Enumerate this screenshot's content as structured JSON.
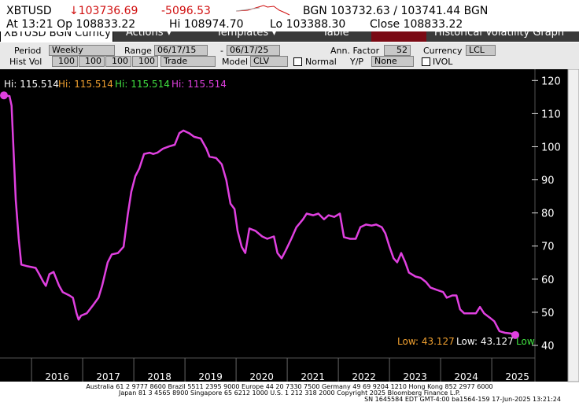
{
  "header": {
    "ticker": "XBTUSD",
    "last": "↓103736.69",
    "change": "-5096.53",
    "quote": "BGN 103732.63 / 103741.44 BGN",
    "open": "At 13:21 Op 108833.22",
    "hi": "Hi 108974.70",
    "lo": "Lo 103388.30",
    "close": "Close 108833.22"
  },
  "menu": [
    "XBTUSD BGN Curncy",
    "Actions ▾",
    "Templates ▾",
    "Table",
    "Historical Volatility Graph"
  ],
  "controls": {
    "period_label": "Period",
    "period": "Weekly",
    "range_label": "Range",
    "range_start": "06/17/15",
    "range_dash": "-",
    "range_end": "06/17/25",
    "ann_label": "Ann. Factor",
    "ann": "52",
    "currency_label": "Currency",
    "currency": "LCL",
    "hist_label": "Hist Vol",
    "hist": [
      "100",
      "100",
      "100",
      "100"
    ],
    "price": "Trade",
    "model_label": "Model",
    "model": "CLV",
    "normal": "Normal",
    "yp_label": "Y/P",
    "yp": "None",
    "ivol": "IVOL"
  },
  "chart_data": {
    "type": "line",
    "color": "#e040e0",
    "x": [
      2015.46,
      2015.57,
      2015.61,
      2015.69,
      2015.75,
      2015.8,
      2015.92,
      2016.08,
      2016.15,
      2016.23,
      2016.28,
      2016.35,
      2016.43,
      2016.54,
      2016.61,
      2016.74,
      2016.81,
      2016.88,
      2016.92,
      2016.97,
      2017.08,
      2017.2,
      2017.31,
      2017.38,
      2017.49,
      2017.57,
      2017.69,
      2017.8,
      2017.88,
      2017.95,
      2018.03,
      2018.11,
      2018.2,
      2018.31,
      2018.38,
      2018.46,
      2018.57,
      2018.69,
      2018.8,
      2018.89,
      2018.97,
      2019.08,
      2019.18,
      2019.31,
      2019.42,
      2019.48,
      2019.61,
      2019.72,
      2019.81,
      2019.89,
      2019.97,
      2020.03,
      2020.11,
      2020.18,
      2020.26,
      2020.38,
      2020.51,
      2020.61,
      2020.74,
      2020.81,
      2020.89,
      2020.97,
      2021.08,
      2021.18,
      2021.31,
      2021.38,
      2021.51,
      2021.61,
      2021.72,
      2021.81,
      2021.92,
      2022.03,
      2022.11,
      2022.23,
      2022.34,
      2022.43,
      2022.54,
      2022.65,
      2022.74,
      2022.85,
      2022.92,
      2023.0,
      2023.08,
      2023.15,
      2023.23,
      2023.31,
      2023.38,
      2023.51,
      2023.61,
      2023.71,
      2023.8,
      2023.92,
      2024.05,
      2024.12,
      2024.23,
      2024.31,
      2024.38,
      2024.46,
      2024.58,
      2024.69,
      2024.77,
      2024.85,
      2024.95,
      2025.05,
      2025.15,
      2025.26,
      2025.38,
      2025.46
    ],
    "values": [
      115.514,
      115.3,
      112.4,
      84.0,
      72.2,
      64.4,
      63.9,
      63.4,
      61.5,
      59.2,
      58.0,
      61.5,
      62.2,
      58.0,
      56.1,
      55.1,
      54.4,
      49.7,
      47.8,
      49.0,
      49.7,
      52.1,
      54.4,
      58.0,
      65.1,
      67.5,
      67.9,
      69.8,
      79.3,
      86.4,
      91.1,
      93.5,
      97.8,
      98.2,
      97.8,
      98.2,
      99.4,
      100.1,
      100.6,
      104.1,
      104.9,
      104.1,
      103.0,
      102.5,
      99.4,
      97.0,
      96.6,
      94.7,
      89.9,
      82.8,
      81.2,
      74.6,
      69.8,
      67.9,
      75.3,
      74.6,
      72.9,
      72.2,
      72.9,
      67.9,
      66.3,
      68.6,
      72.2,
      75.7,
      78.1,
      79.8,
      79.3,
      79.8,
      78.1,
      79.3,
      78.8,
      79.8,
      72.7,
      72.2,
      72.2,
      75.7,
      76.5,
      76.2,
      76.5,
      75.7,
      73.8,
      69.8,
      66.3,
      65.1,
      67.9,
      65.1,
      62.0,
      60.8,
      60.4,
      59.2,
      57.5,
      56.8,
      56.1,
      54.4,
      55.1,
      55.1,
      50.9,
      49.7,
      49.7,
      49.7,
      51.6,
      49.7,
      48.5,
      47.3,
      44.3,
      43.8,
      43.6,
      43.127
    ],
    "xlim": [
      2015.46,
      2025.46
    ],
    "xticks": [
      {
        "value": 2016.5,
        "label": "2016"
      },
      {
        "value": 2017.5,
        "label": "2017"
      },
      {
        "value": 2018.5,
        "label": "2018"
      },
      {
        "value": 2019.5,
        "label": "2019"
      },
      {
        "value": 2020.5,
        "label": "2020"
      },
      {
        "value": 2021.5,
        "label": "2021"
      },
      {
        "value": 2022.5,
        "label": "2022"
      },
      {
        "value": 2023.5,
        "label": "2023"
      },
      {
        "value": 2024.5,
        "label": "2024"
      },
      {
        "value": 2025.5,
        "label": "2025"
      }
    ],
    "ylim": [
      36.2,
      123.4
    ],
    "yticks": [
      40,
      50,
      60,
      70,
      80,
      90,
      100,
      110,
      120
    ],
    "hi_labels": [
      {
        "text": "Hi: 115.514",
        "color": "#ffffff"
      },
      {
        "text": "Hi: 115.514",
        "color": "#f0a030"
      },
      {
        "text": "Hi: 115.514",
        "color": "#40e040"
      },
      {
        "text": "Hi: 115.514",
        "color": "#e040e0"
      }
    ],
    "low_labels": [
      {
        "text": "Low: 43.127",
        "color": "#f0a030"
      },
      {
        "text": "Low: 43.127",
        "color": "#ffffff"
      },
      {
        "text": "Low",
        "color": "#40e040"
      }
    ]
  },
  "footer": [
    "Australia 61 2 9777 8600 Brazil 5511 2395 9000 Europe 44 20 7330 7500 Germany 49 69 9204 1210 Hong Kong 852 2977 6000",
    "Japan 81 3 4565 8900       Singapore 65 6212 1000       U.S. 1 212 318 2000       Copyright 2025 Bloomberg Finance L.P.",
    "SN 1645584 EDT  GMT-4:00 ba1564-159 17-Jun-2025 13:21:24"
  ]
}
